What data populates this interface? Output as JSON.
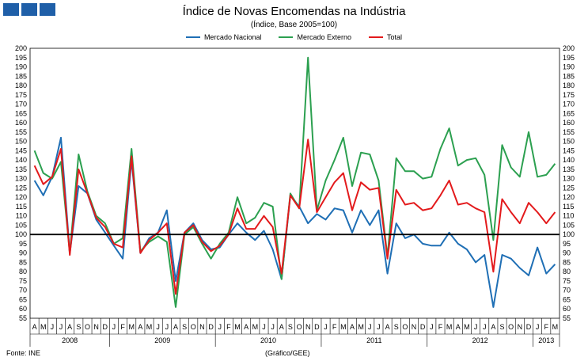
{
  "title": "Índice de Novas Encomendas na Indústria",
  "subtitle": "(Índice, Base 2005=100)",
  "source": "Fonte: INE",
  "graph_credit": "(Gráfico/GEE)",
  "colors": {
    "nacional": "#1f6fb5",
    "externo": "#2ca050",
    "total": "#e31a1c",
    "logo": "#1f5fa8",
    "reference": "#000000"
  },
  "chart_data": {
    "type": "line",
    "title": "Índice de Novas Encomendas na Indústria",
    "subtitle": "(Índice, Base 2005=100)",
    "ylim": [
      55,
      200
    ],
    "ystep": 5,
    "reference_line": 100,
    "legend_position": "top-center",
    "month_labels": [
      "A",
      "M",
      "J",
      "J",
      "A",
      "S",
      "O",
      "N",
      "D",
      "J",
      "F",
      "M",
      "A",
      "M",
      "J",
      "J",
      "A",
      "S",
      "O",
      "N",
      "D",
      "J",
      "F",
      "M",
      "A",
      "M",
      "J",
      "J",
      "A",
      "S",
      "O",
      "N",
      "D",
      "J",
      "F",
      "M",
      "A",
      "M",
      "J",
      "J",
      "A",
      "S",
      "O",
      "N",
      "D",
      "J",
      "F",
      "M",
      "A",
      "M",
      "J",
      "J",
      "A",
      "S",
      "O",
      "N",
      "D",
      "J",
      "F",
      "M"
    ],
    "years": [
      {
        "label": "2008",
        "start": 0,
        "end": 9
      },
      {
        "label": "2009",
        "start": 9,
        "end": 21
      },
      {
        "label": "2010",
        "start": 21,
        "end": 33
      },
      {
        "label": "2011",
        "start": 33,
        "end": 45
      },
      {
        "label": "2012",
        "start": 45,
        "end": 57
      },
      {
        "label": "2013",
        "start": 57,
        "end": 60
      }
    ],
    "series": [
      {
        "name": "Mercado Nacional",
        "color": "#1f6fb5",
        "values": [
          129,
          121,
          131,
          152,
          90,
          126,
          122,
          108,
          101,
          94,
          87,
          140,
          90,
          98,
          101,
          113,
          75,
          101,
          106,
          97,
          92,
          93,
          100,
          106,
          101,
          97,
          102,
          92,
          76,
          121,
          115,
          106,
          111,
          108,
          114,
          113,
          101,
          113,
          105,
          113,
          79,
          106,
          98,
          100,
          95,
          94,
          94,
          101,
          95,
          92,
          85,
          89,
          61,
          89,
          87,
          82,
          78,
          93,
          79,
          84
        ]
      },
      {
        "name": "Mercado Externo",
        "color": "#2ca050",
        "values": [
          145,
          133,
          130,
          139,
          90,
          143,
          123,
          110,
          106,
          95,
          98,
          146,
          91,
          96,
          99,
          96,
          61,
          100,
          104,
          95,
          87,
          95,
          101,
          120,
          106,
          109,
          117,
          115,
          76,
          122,
          114,
          195,
          113,
          129,
          140,
          152,
          126,
          144,
          143,
          129,
          88,
          141,
          134,
          134,
          130,
          131,
          146,
          157,
          137,
          140,
          141,
          132,
          97,
          148,
          136,
          131,
          155,
          131,
          132,
          138
        ]
      },
      {
        "name": "Total",
        "color": "#e31a1c",
        "values": [
          137,
          127,
          131,
          146,
          89,
          135,
          122,
          109,
          104,
          95,
          93,
          142,
          90,
          97,
          101,
          106,
          68,
          101,
          105,
          96,
          91,
          94,
          100,
          114,
          103,
          103,
          110,
          104,
          79,
          121,
          114,
          151,
          112,
          120,
          128,
          133,
          113,
          128,
          124,
          125,
          87,
          124,
          116,
          117,
          113,
          114,
          121,
          129,
          116,
          117,
          114,
          112,
          80,
          119,
          112,
          106,
          117,
          112,
          106,
          112
        ]
      }
    ]
  }
}
